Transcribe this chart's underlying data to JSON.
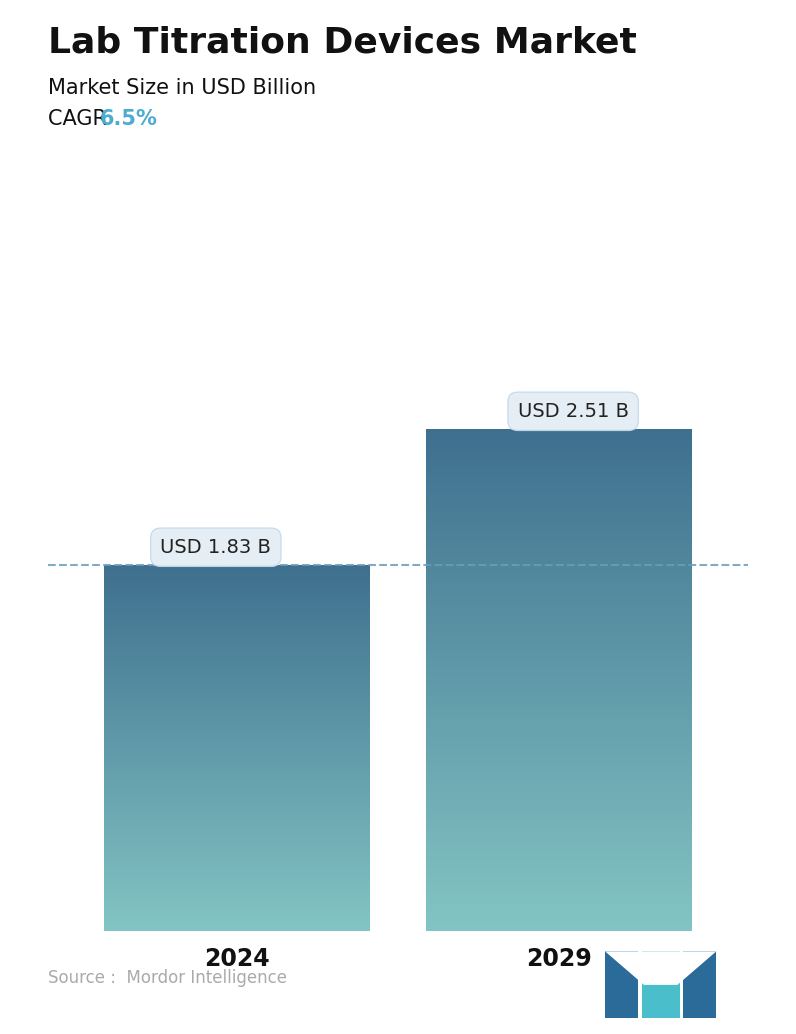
{
  "title": "Lab Titration Devices Market",
  "subtitle": "Market Size in USD Billion",
  "cagr_label": "CAGR  ",
  "cagr_value": "6.5%",
  "cagr_color": "#4EACD1",
  "categories": [
    "2024",
    "2029"
  ],
  "values": [
    1.83,
    2.51
  ],
  "bar_labels": [
    "USD 1.83 B",
    "USD 2.51 B"
  ],
  "bar_color_top": "#3E6F8E",
  "bar_color_bottom": "#82C4C3",
  "dashed_line_color": "#6B9DB8",
  "dashed_line_value": 1.83,
  "source_text": "Source :  Mordor Intelligence",
  "source_color": "#AAAAAA",
  "background_color": "#FFFFFF",
  "title_fontsize": 26,
  "subtitle_fontsize": 15,
  "cagr_fontsize": 15,
  "bar_label_fontsize": 14,
  "xlabel_fontsize": 17,
  "source_fontsize": 12,
  "ylim_max": 3.0,
  "bar_positions": [
    0.27,
    0.73
  ],
  "bar_width": 0.38,
  "callout_bg": "#E4EEF4",
  "callout_border": "#C0D5E8",
  "logo_dark": "#2B6B9A",
  "logo_light": "#4BBECB"
}
